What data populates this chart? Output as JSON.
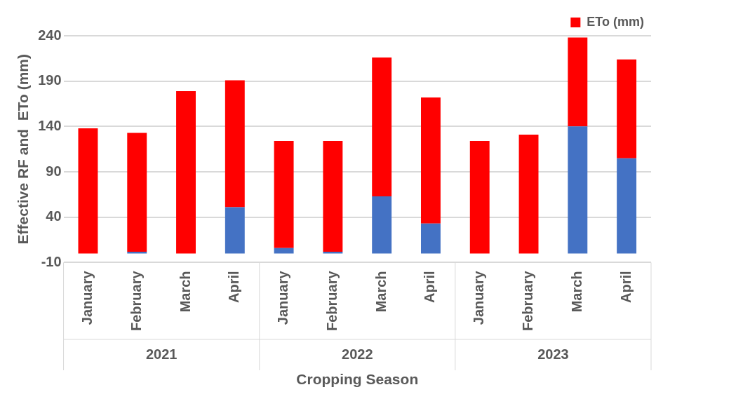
{
  "chart_data": {
    "type": "bar",
    "stacked": true,
    "ylabel": "Effective RF and  ETo (mm)",
    "xlabel": "Cropping Season",
    "categories": [
      "January",
      "February",
      "March",
      "April",
      "January",
      "February",
      "March",
      "April",
      "January",
      "February",
      "March",
      "April"
    ],
    "annotations": [
      "2021",
      "2022",
      "2023"
    ],
    "series": [
      {
        "color": "#4472c4",
        "values": [
          0,
          2,
          0,
          51,
          6,
          2,
          63,
          33,
          0,
          0,
          140,
          105
        ]
      },
      {
        "name": "ETo (mm)",
        "color": "#ff0000",
        "values": [
          138,
          131,
          179,
          140,
          118,
          122,
          153,
          139,
          124,
          131,
          98,
          109
        ]
      }
    ],
    "ylim": [
      -10,
      240
    ],
    "yticks": [
      -10,
      40,
      90,
      140,
      190,
      240
    ],
    "grid": "y",
    "legend": "top right"
  }
}
